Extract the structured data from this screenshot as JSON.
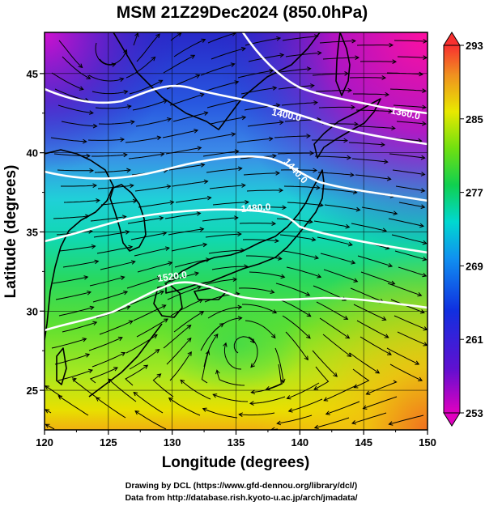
{
  "title": "MSM 21Z29Dec2024 (850.0hPa)",
  "xlabel": "Longitude (degrees)",
  "ylabel": "Latitude  (degrees)",
  "x_ticks": [
    "120",
    "125",
    "130",
    "135",
    "140",
    "145",
    "150"
  ],
  "y_ticks": [
    "25",
    "30",
    "35",
    "40",
    "45"
  ],
  "colorbar_ticks": [
    "293",
    "285",
    "277",
    "269",
    "261",
    "253"
  ],
  "contour_labels": [
    "1360.0",
    "1400.0",
    "1440.0",
    "1480.0",
    "1520.0"
  ],
  "credits": [
    "Drawing by DCL (https://www.gfd-dennou.org/library/dcl/)",
    "Data from http://database.rish.kyoto-u.ac.jp/arch/jmadata/"
  ],
  "chart_data": {
    "type": "heatmap",
    "title": "MSM 21Z29Dec2024 (850.0hPa)",
    "xlabel": "Longitude (degrees)",
    "ylabel": "Latitude  (degrees)",
    "xlim": [
      120,
      150
    ],
    "ylim": [
      22.5,
      47.6
    ],
    "x_ticks": [
      120,
      125,
      130,
      135,
      140,
      145,
      150
    ],
    "y_ticks": [
      25,
      30,
      35,
      40,
      45
    ],
    "colorbar": {
      "range": [
        253,
        293
      ],
      "ticks": [
        293,
        285,
        277,
        269,
        261,
        253
      ],
      "colors": [
        "#d000d0",
        "#3040e8",
        "#00d0e0",
        "#20d040",
        "#f0e000",
        "#f07020",
        "#ff3030"
      ]
    },
    "contours": [
      {
        "label": "1360.0",
        "label_pos": [
          148.5,
          43.8
        ]
      },
      {
        "label": "1400.0",
        "label_pos": [
          138.5,
          43.0
        ]
      },
      {
        "label": "1440.0",
        "label_pos": [
          140,
          40.3
        ]
      },
      {
        "label": "1480.0",
        "label_pos": [
          138,
          37.3
        ]
      },
      {
        "label": "1520.0",
        "label_pos": [
          130.5,
          32.8
        ]
      }
    ],
    "vortices": [
      {
        "name": "",
        "center": [
          135.5,
          28.0
        ]
      },
      {
        "name": "",
        "center": [
          125,
          46
        ]
      }
    ],
    "grid": true
  }
}
